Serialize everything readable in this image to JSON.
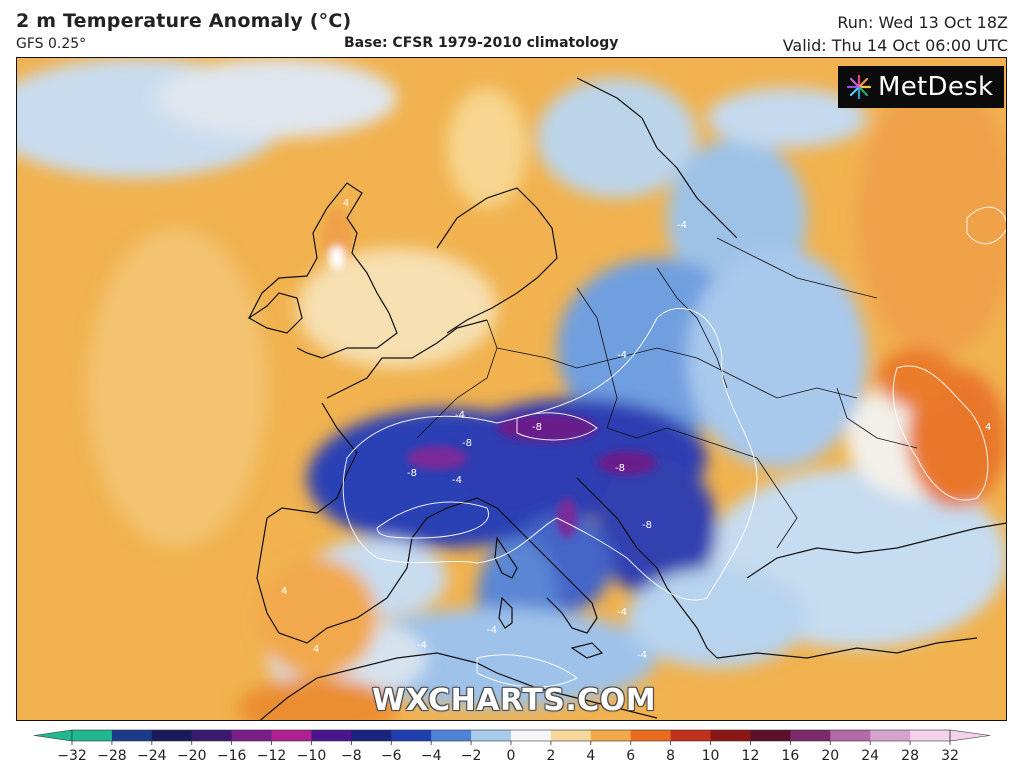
{
  "header": {
    "title": "2 m Temperature Anomaly (°C)",
    "model": "GFS 0.25°",
    "base": "Base: CFSR 1979-2010 climatology",
    "run": "Run: Wed 13 Oct 18Z",
    "valid": "Valid: Thu 14 Oct 06:00 UTC"
  },
  "logo": {
    "text": "MetDesk",
    "icon": "starburst-logo-icon"
  },
  "watermark": "WXCHARTS.COM",
  "colorbar": {
    "ticks": [
      "−32",
      "−28",
      "−24",
      "−20",
      "−16",
      "−12",
      "−10",
      "−8",
      "−6",
      "−4",
      "−2",
      "0",
      "2",
      "4",
      "6",
      "8",
      "10",
      "12",
      "16",
      "20",
      "24",
      "28",
      "32"
    ],
    "colors": [
      "#1fb890",
      "#1a3a8a",
      "#1a1a5a",
      "#3a1a70",
      "#7a1e8a",
      "#b02090",
      "#4a148c",
      "#1a237e",
      "#1f3fb0",
      "#4f82d6",
      "#a8cbeb",
      "#f4f6f8",
      "#f7d79c",
      "#f3a84a",
      "#ea6a1e",
      "#c0301c",
      "#8a1616",
      "#5a0f2a",
      "#7a2a6a",
      "#b06aa8",
      "#d8a2cf",
      "#f3d3ec"
    ]
  },
  "map": {
    "contour_labels": [
      "4",
      "-4",
      "-4",
      "-4",
      "-8",
      "-8",
      "-8",
      "-8",
      "-8",
      "-4",
      "-4",
      "-4",
      "-4",
      "4",
      "4",
      "4",
      "-4"
    ]
  }
}
